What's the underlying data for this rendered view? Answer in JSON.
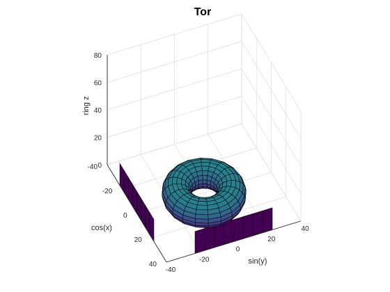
{
  "chart_data": {
    "type": "surface",
    "title": "Tor",
    "xlabel": "sin(y)",
    "ylabel": "cos(x)",
    "zlabel": "ring z",
    "xlim": [
      -40,
      40
    ],
    "ylim": [
      -40,
      40
    ],
    "zlim": [
      0,
      80
    ],
    "xticks": [
      "-40",
      "-20",
      "0",
      "20",
      "40"
    ],
    "yticks": [
      "-40",
      "-20",
      "0",
      "20",
      "40"
    ],
    "zticks": [
      "0",
      "20",
      "40",
      "60",
      "80"
    ],
    "grid": true,
    "colormap": "viridis",
    "edge_color": "#000000",
    "surfaces": [
      {
        "kind": "torus",
        "center": [
          0,
          0,
          0
        ],
        "major_radius": 15,
        "minor_radius": 8,
        "rings": 20,
        "segments": 20
      },
      {
        "kind": "projection-strip",
        "plane": "xz",
        "x_range": [
          -23,
          23
        ],
        "y": 40,
        "z_range": [
          0,
          16
        ],
        "color": "#440154"
      },
      {
        "kind": "projection-strip",
        "plane": "yz",
        "x": -40,
        "y_range": [
          -23,
          23
        ],
        "z_range": [
          0,
          16
        ],
        "color": "#440154"
      }
    ]
  }
}
